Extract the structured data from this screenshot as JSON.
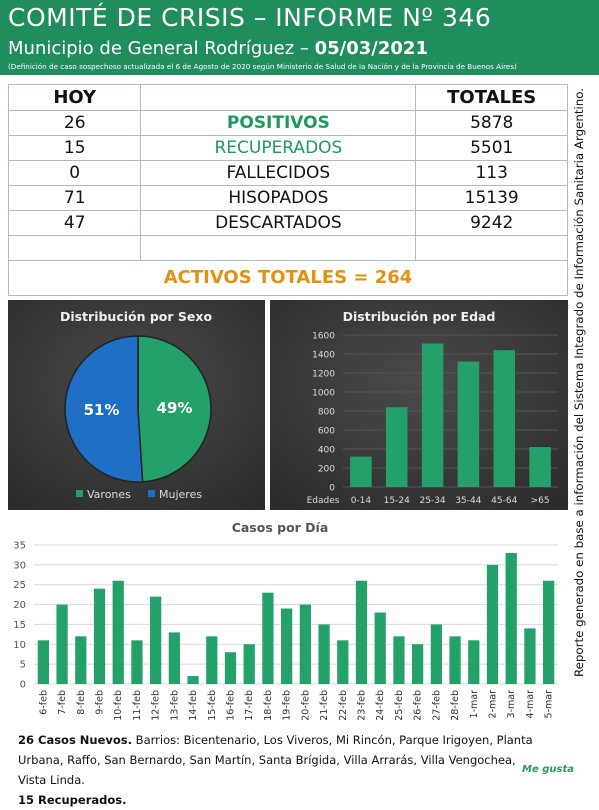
{
  "header": {
    "title": "COMITÉ DE CRISIS – INFORME Nº 346",
    "subtitle": "Municipio de General Rodríguez – ",
    "date": "05/03/2021",
    "note": "(Definición de caso sospechoso actualizada el 6 de Agosto de 2020 según Ministerio de Salud de la Nación y de la Provincia de Buenos Aires)"
  },
  "table": {
    "headers": [
      "HOY",
      "TOTALES"
    ],
    "rows": [
      [
        26,
        "POSITIVOS",
        5878
      ],
      [
        15,
        "RECUPERADOS",
        5501
      ],
      [
        0,
        "FALLECIDOS",
        113
      ],
      [
        71,
        "HISOPADOS",
        15139
      ],
      [
        47,
        "DESCARTADOS",
        9242
      ]
    ],
    "footer": "ACTIVOS TOTALES = 264"
  },
  "side_note": "Reporte generado en base a información del Sistema Integrado de Información Sanitaria Argentino.",
  "chart_data": [
    {
      "type": "pie",
      "title": "Distribución por Sexo",
      "categories": [
        "Varones",
        "Mujeres"
      ],
      "values": [
        49,
        51
      ],
      "value_labels": [
        "49%",
        "51%"
      ],
      "colors": [
        "#24a06a",
        "#1f6fc6"
      ],
      "legend": "bottom"
    },
    {
      "type": "bar",
      "title": "Distribución por Edad",
      "xlabel": "Edades",
      "categories": [
        "0-14",
        "15-24",
        "25-34",
        "35-44",
        "45-64",
        ">65"
      ],
      "values": [
        320,
        840,
        1510,
        1320,
        1440,
        420
      ],
      "color": "#24a06a",
      "ylim": [
        0,
        1600
      ],
      "yticks": [
        0,
        200,
        400,
        600,
        800,
        1000,
        1200,
        1400,
        1600
      ],
      "grid": true
    },
    {
      "type": "bar",
      "title": "Casos por Día",
      "categories": [
        "6-feb",
        "7-feb",
        "8-feb",
        "9-feb",
        "10-feb",
        "11-feb",
        "12-feb",
        "13-feb",
        "14-feb",
        "15-feb",
        "16-feb",
        "17-feb",
        "18-feb",
        "19-feb",
        "20-feb",
        "21-feb",
        "22-feb",
        "23-feb",
        "24-feb",
        "25-feb",
        "26-feb",
        "27-feb",
        "28-feb",
        "1-mar",
        "2-mar",
        "3-mar",
        "4-mar",
        "5-mar"
      ],
      "values": [
        11,
        20,
        12,
        24,
        26,
        11,
        22,
        13,
        2,
        12,
        8,
        10,
        23,
        19,
        20,
        15,
        11,
        26,
        18,
        12,
        10,
        15,
        12,
        11,
        30,
        33,
        14,
        26
      ],
      "color": "#24a06a",
      "ylim": [
        0,
        35
      ],
      "yticks": [
        0,
        5,
        10,
        15,
        20,
        25,
        30,
        35
      ],
      "grid": true
    }
  ],
  "footer": {
    "new_cases": "26 Casos Nuevos.",
    "barrios": " Barrios: Bicentenario, Los Viveros, Mi Rincón, Parque Irigoyen, Planta Urbana, Raffo, San Bernardo, San Martín, Santa Brígida, Villa Arrarás, Villa Vengochea, Vista Linda.",
    "recovered": "15 Recuperados."
  },
  "logo": "Me gusta"
}
